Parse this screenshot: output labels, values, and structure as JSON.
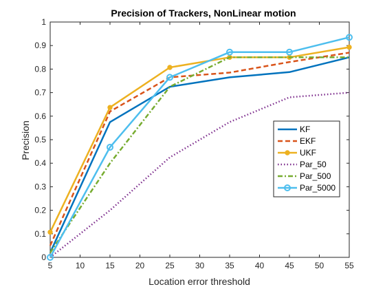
{
  "chart_data": {
    "type": "line",
    "title": "Precision of Trackers, NonLinear motion",
    "xlabel": "Location error threshold",
    "ylabel": "Precision",
    "xlim": [
      5,
      55
    ],
    "ylim": [
      0,
      1
    ],
    "x_ticks": [
      5,
      10,
      15,
      20,
      25,
      30,
      35,
      40,
      45,
      50,
      55
    ],
    "y_ticks": [
      0,
      0.1,
      0.2,
      0.3,
      0.4,
      0.5,
      0.6,
      0.7,
      0.8,
      0.9,
      1
    ],
    "x_tick_labels": [
      "5",
      "10",
      "15",
      "20",
      "25",
      "30",
      "35",
      "40",
      "45",
      "50",
      "55"
    ],
    "y_tick_labels": [
      "0",
      "0.1",
      "0.2",
      "0.3",
      "0.4",
      "0.5",
      "0.6",
      "0.7",
      "0.8",
      "0.9",
      "1"
    ],
    "grid": false,
    "legend_position": "right",
    "x": [
      5,
      15,
      25,
      35,
      45,
      55
    ],
    "series": [
      {
        "name": "KF",
        "values": [
          0.02,
          0.575,
          0.725,
          0.765,
          0.787,
          0.85
        ],
        "color": "#0072BD",
        "dash": "solid",
        "marker": "none"
      },
      {
        "name": "EKF",
        "values": [
          0.05,
          0.62,
          0.765,
          0.785,
          0.83,
          0.87
        ],
        "color": "#D95319",
        "dash": "dashed",
        "marker": "none"
      },
      {
        "name": "UKF",
        "values": [
          0.107,
          0.637,
          0.807,
          0.85,
          0.85,
          0.893
        ],
        "color": "#EDB120",
        "dash": "solid",
        "marker": "dot"
      },
      {
        "name": "Par_50",
        "values": [
          0.0,
          0.2,
          0.425,
          0.575,
          0.68,
          0.7
        ],
        "color": "#7E2F8E",
        "dash": "dotted",
        "marker": "none"
      },
      {
        "name": "Par_500",
        "values": [
          0.02,
          0.4,
          0.725,
          0.85,
          0.85,
          0.85
        ],
        "color": "#77AC30",
        "dash": "dashdot",
        "marker": "none"
      },
      {
        "name": "Par_5000",
        "values": [
          0.0,
          0.468,
          0.765,
          0.872,
          0.872,
          0.935
        ],
        "color": "#4DBEEE",
        "dash": "solid",
        "marker": "circle"
      }
    ]
  }
}
